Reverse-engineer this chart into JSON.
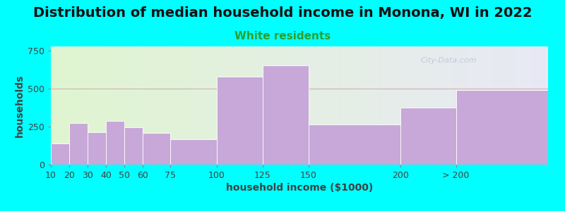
{
  "title": "Distribution of median household income in Monona, WI in 2022",
  "subtitle": "White residents",
  "xlabel": "household income ($1000)",
  "ylabel": "households",
  "background_color": "#00FFFF",
  "plot_bg_color_left": "#dff5d0",
  "plot_bg_color_right": "#e8e8f5",
  "bar_color": "#c8a8d8",
  "bar_edge_color": "#ffffff",
  "bin_edges": [
    10,
    20,
    30,
    40,
    50,
    60,
    75,
    100,
    125,
    150,
    200,
    230,
    280
  ],
  "tick_positions": [
    10,
    20,
    30,
    40,
    50,
    60,
    75,
    100,
    125,
    150,
    200,
    230
  ],
  "tick_labels": [
    "10",
    "20",
    "30",
    "40",
    "50",
    "60",
    "75",
    "100",
    "125",
    "150",
    "200",
    "> 200"
  ],
  "values": [
    140,
    275,
    215,
    290,
    245,
    210,
    165,
    580,
    655,
    265,
    375,
    490
  ],
  "title_fontsize": 14,
  "subtitle_fontsize": 11,
  "subtitle_color": "#2ca02c",
  "axis_label_fontsize": 10,
  "tick_fontsize": 9,
  "watermark": "City-Data.com",
  "ylim": [
    0,
    780
  ],
  "hline_y": 500,
  "hline_color": "#d0a0a0"
}
